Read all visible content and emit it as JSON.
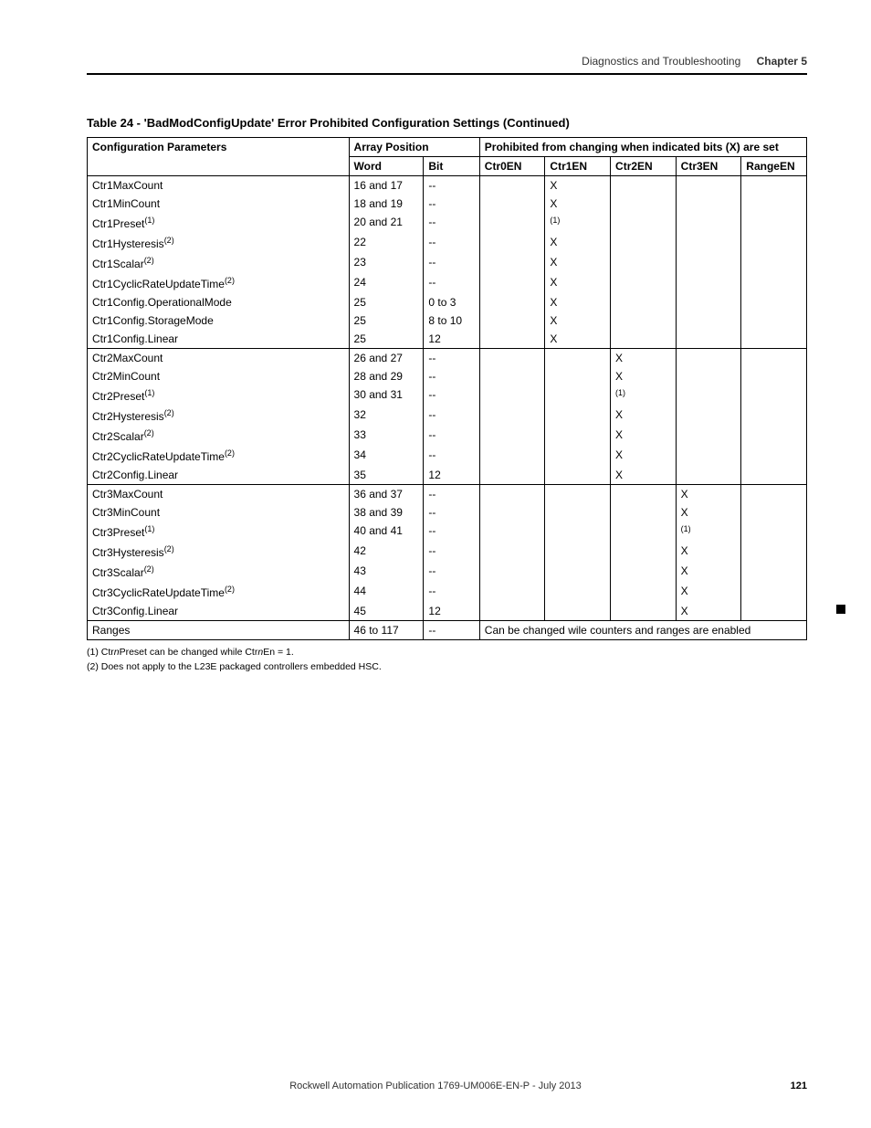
{
  "header": {
    "section": "Diagnostics and Troubleshooting",
    "chapter": "Chapter 5"
  },
  "tableTitle": "Table 24 - 'BadModConfigUpdate' Error Prohibited Configuration Settings (Continued)",
  "columns": {
    "config": "Configuration Parameters",
    "array": "Array Position",
    "prohibited": "Prohibited from changing when indicated bits (X) are set",
    "word": "Word",
    "bit": "Bit",
    "ctr0": "Ctr0EN",
    "ctr1": "Ctr1EN",
    "ctr2": "Ctr2EN",
    "ctr3": "Ctr3EN",
    "range": "RangeEN"
  },
  "rows": [
    {
      "p": "Ctr1MaxCount",
      "sup": "",
      "w": "16 and 17",
      "b": "--",
      "c0": "",
      "c1": "X",
      "c2": "",
      "c3": "",
      "r": "",
      "top": true
    },
    {
      "p": "Ctr1MinCount",
      "sup": "",
      "w": "18 and 19",
      "b": "--",
      "c0": "",
      "c1": "X",
      "c2": "",
      "c3": "",
      "r": ""
    },
    {
      "p": "Ctr1Preset",
      "sup": "(1)",
      "w": "20 and 21",
      "b": "--",
      "c0": "",
      "c1": "(1)",
      "c2": "",
      "c3": "",
      "r": ""
    },
    {
      "p": "Ctr1Hysteresis",
      "sup": "(2)",
      "w": "22",
      "b": "--",
      "c0": "",
      "c1": "X",
      "c2": "",
      "c3": "",
      "r": ""
    },
    {
      "p": "Ctr1Scalar",
      "sup": "(2)",
      "w": "23",
      "b": "--",
      "c0": "",
      "c1": "X",
      "c2": "",
      "c3": "",
      "r": ""
    },
    {
      "p": "Ctr1CyclicRateUpdateTime",
      "sup": "(2)",
      "w": "24",
      "b": "--",
      "c0": "",
      "c1": "X",
      "c2": "",
      "c3": "",
      "r": ""
    },
    {
      "p": "Ctr1Config.OperationalMode",
      "sup": "",
      "w": "25",
      "b": "0 to 3",
      "c0": "",
      "c1": "X",
      "c2": "",
      "c3": "",
      "r": ""
    },
    {
      "p": "Ctr1Config.StorageMode",
      "sup": "",
      "w": "25",
      "b": "8 to 10",
      "c0": "",
      "c1": "X",
      "c2": "",
      "c3": "",
      "r": ""
    },
    {
      "p": "Ctr1Config.Linear",
      "sup": "",
      "w": "25",
      "b": "12",
      "c0": "",
      "c1": "X",
      "c2": "",
      "c3": "",
      "r": ""
    },
    {
      "p": "Ctr2MaxCount",
      "sup": "",
      "w": "26 and 27",
      "b": "--",
      "c0": "",
      "c1": "",
      "c2": "X",
      "c3": "",
      "r": "",
      "top": true
    },
    {
      "p": "Ctr2MinCount",
      "sup": "",
      "w": "28 and 29",
      "b": "--",
      "c0": "",
      "c1": "",
      "c2": "X",
      "c3": "",
      "r": ""
    },
    {
      "p": "Ctr2Preset",
      "sup": "(1)",
      "w": "30 and 31",
      "b": "--",
      "c0": "",
      "c1": "",
      "c2": "(1)",
      "c3": "",
      "r": ""
    },
    {
      "p": "Ctr2Hysteresis",
      "sup": "(2)",
      "w": "32",
      "b": "--",
      "c0": "",
      "c1": "",
      "c2": "X",
      "c3": "",
      "r": ""
    },
    {
      "p": "Ctr2Scalar",
      "sup": "(2)",
      "w": "33",
      "b": "--",
      "c0": "",
      "c1": "",
      "c2": "X",
      "c3": "",
      "r": ""
    },
    {
      "p": "Ctr2CyclicRateUpdateTime",
      "sup": "(2)",
      "w": "34",
      "b": "--",
      "c0": "",
      "c1": "",
      "c2": "X",
      "c3": "",
      "r": ""
    },
    {
      "p": "Ctr2Config.Linear",
      "sup": "",
      "w": "35",
      "b": "12",
      "c0": "",
      "c1": "",
      "c2": "X",
      "c3": "",
      "r": ""
    },
    {
      "p": "Ctr3MaxCount",
      "sup": "",
      "w": "36 and 37",
      "b": "--",
      "c0": "",
      "c1": "",
      "c2": "",
      "c3": "X",
      "r": "",
      "top": true
    },
    {
      "p": "Ctr3MinCount",
      "sup": "",
      "w": "38 and 39",
      "b": "--",
      "c0": "",
      "c1": "",
      "c2": "",
      "c3": "X",
      "r": ""
    },
    {
      "p": "Ctr3Preset",
      "sup": "(1)",
      "w": "40 and 41",
      "b": "--",
      "c0": "",
      "c1": "",
      "c2": "",
      "c3": "(1)",
      "r": ""
    },
    {
      "p": "Ctr3Hysteresis",
      "sup": "(2)",
      "w": "42",
      "b": "--",
      "c0": "",
      "c1": "",
      "c2": "",
      "c3": "X",
      "r": ""
    },
    {
      "p": "Ctr3Scalar",
      "sup": "(2)",
      "w": "43",
      "b": "--",
      "c0": "",
      "c1": "",
      "c2": "",
      "c3": "X",
      "r": ""
    },
    {
      "p": "Ctr3CyclicRateUpdateTime",
      "sup": "(2)",
      "w": "44",
      "b": "--",
      "c0": "",
      "c1": "",
      "c2": "",
      "c3": "X",
      "r": ""
    },
    {
      "p": "Ctr3Config.Linear",
      "sup": "",
      "w": "45",
      "b": "12",
      "c0": "",
      "c1": "",
      "c2": "",
      "c3": "X",
      "r": ""
    }
  ],
  "lastRow": {
    "p": "Ranges",
    "w": "46 to 117",
    "b": "--",
    "note": "Can be changed wile counters and ranges are enabled"
  },
  "footnotes": {
    "fn1a": "(1)  Ctr",
    "fn1b": "n",
    "fn1c": "Preset can be changed while Ctr",
    "fn1d": "n",
    "fn1e": "En = 1.",
    "fn2": "(2)  Does not apply to the L23E packaged controllers embedded HSC."
  },
  "footer": {
    "pub": "Rockwell Automation Publication 1769-UM006E-EN-P - July 2013",
    "page": "121"
  }
}
